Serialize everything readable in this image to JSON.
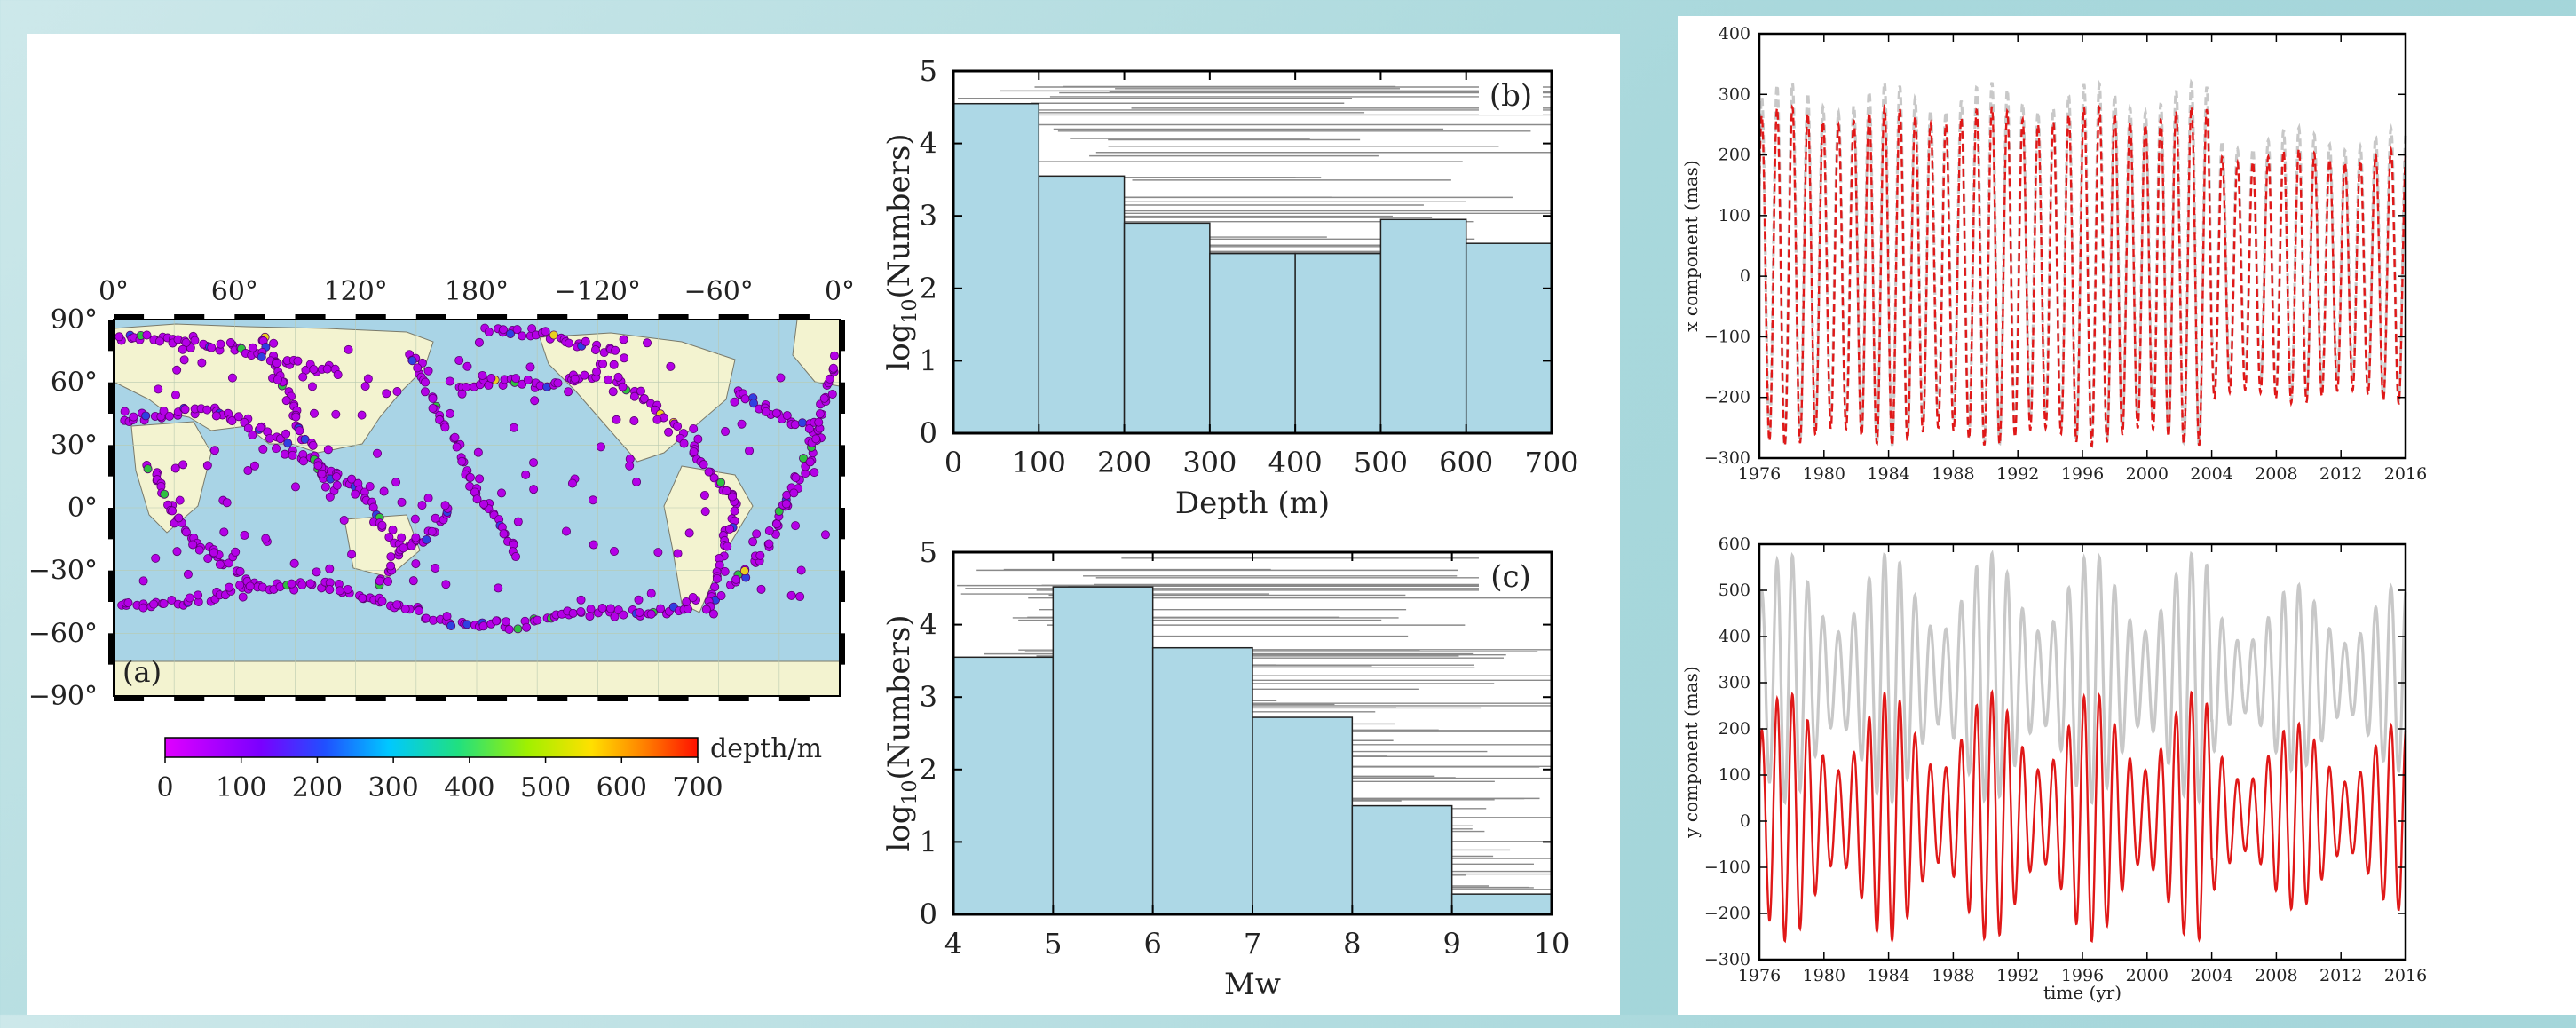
{
  "colors": {
    "bar_fill": "#add8e6",
    "land": "#f3f3d0",
    "ocean": "#a9d4e6",
    "quake": "#b400e6",
    "x_red": "#e01818",
    "gray": "#c8c8c8"
  },
  "map": {
    "panel_label": "(a)",
    "lon_labels": [
      "0°",
      "60°",
      "120°",
      "180°",
      "−120°",
      "−60°",
      "0°"
    ],
    "lat_labels": [
      "90°",
      "60°",
      "30°",
      "0°",
      "−30°",
      "−60°",
      "−90°"
    ],
    "colorbar_label": "depth/m",
    "colorbar_ticks": [
      "0",
      "100",
      "200",
      "300",
      "400",
      "500",
      "600",
      "700"
    ]
  },
  "chart_data": [
    {
      "type": "bar",
      "panel_label": "(b)",
      "xlabel": "Depth (m)",
      "ylabel": "log10(Numbers)",
      "ylabel_main": "log",
      "ylabel_sub": "10",
      "ylabel_rest": "(Numbers)",
      "bin_edges": [
        0,
        100,
        200,
        300,
        400,
        500,
        600,
        700
      ],
      "values": [
        4.55,
        3.55,
        2.9,
        2.48,
        2.48,
        2.95,
        2.62
      ],
      "xlim": [
        0,
        700
      ],
      "ylim": [
        0,
        5
      ],
      "xticks": [
        "0",
        "100",
        "200",
        "300",
        "400",
        "500",
        "600",
        "700"
      ],
      "yticks": [
        "0",
        "1",
        "2",
        "3",
        "4",
        "5"
      ]
    },
    {
      "type": "bar",
      "panel_label": "(c)",
      "xlabel": "Mw",
      "ylabel": "log10(Numbers)",
      "ylabel_main": "log",
      "ylabel_sub": "10",
      "ylabel_rest": "(Numbers)",
      "bin_edges": [
        4,
        5,
        6,
        7,
        8,
        9,
        10
      ],
      "values": [
        3.55,
        4.52,
        3.68,
        2.72,
        1.5,
        0.28
      ],
      "xlim": [
        4,
        10
      ],
      "ylim": [
        0,
        5
      ],
      "xticks": [
        "4",
        "5",
        "6",
        "7",
        "8",
        "9",
        "10"
      ],
      "yticks": [
        "0",
        "1",
        "2",
        "3",
        "4",
        "5"
      ]
    },
    {
      "type": "line",
      "ylabel": "x component (mas)",
      "xlabel": "",
      "xlim": [
        1976,
        2016
      ],
      "ylim": [
        -300,
        400
      ],
      "xticks": [
        "1976",
        "1980",
        "1984",
        "1988",
        "1992",
        "1996",
        "2000",
        "2004",
        "2008",
        "2012",
        "2016"
      ],
      "yticks": [
        "−300",
        "−200",
        "−100",
        "0",
        "100",
        "200",
        "300",
        "400"
      ],
      "series": [
        {
          "style": "dashed red",
          "period_yr": 0.95,
          "amplitude_approx_mas": [
            250,
            280
          ],
          "offset_mas": 0
        },
        {
          "style": "dashed gray",
          "period_yr": 0.95,
          "amplitude_approx_mas": [
            250,
            300
          ],
          "offset_mas": 20
        }
      ]
    },
    {
      "type": "line",
      "ylabel": "y component (mas)",
      "xlabel": "time (yr)",
      "xlim": [
        1976,
        2016
      ],
      "ylim": [
        -300,
        600
      ],
      "xticks": [
        "1976",
        "1980",
        "1984",
        "1988",
        "1992",
        "1996",
        "2000",
        "2004",
        "2008",
        "2012",
        "2016"
      ],
      "yticks": [
        "−300",
        "−200",
        "−100",
        "0",
        "100",
        "200",
        "300",
        "400",
        "500",
        "600"
      ],
      "series": [
        {
          "style": "solid red",
          "period_yr": 0.95,
          "amplitude_approx_mas": [
            100,
            270
          ],
          "offset_mas": 10
        },
        {
          "style": "solid gray",
          "period_yr": 0.95,
          "amplitude_approx_mas": [
            100,
            270
          ],
          "offset_mas": 310
        }
      ]
    }
  ]
}
